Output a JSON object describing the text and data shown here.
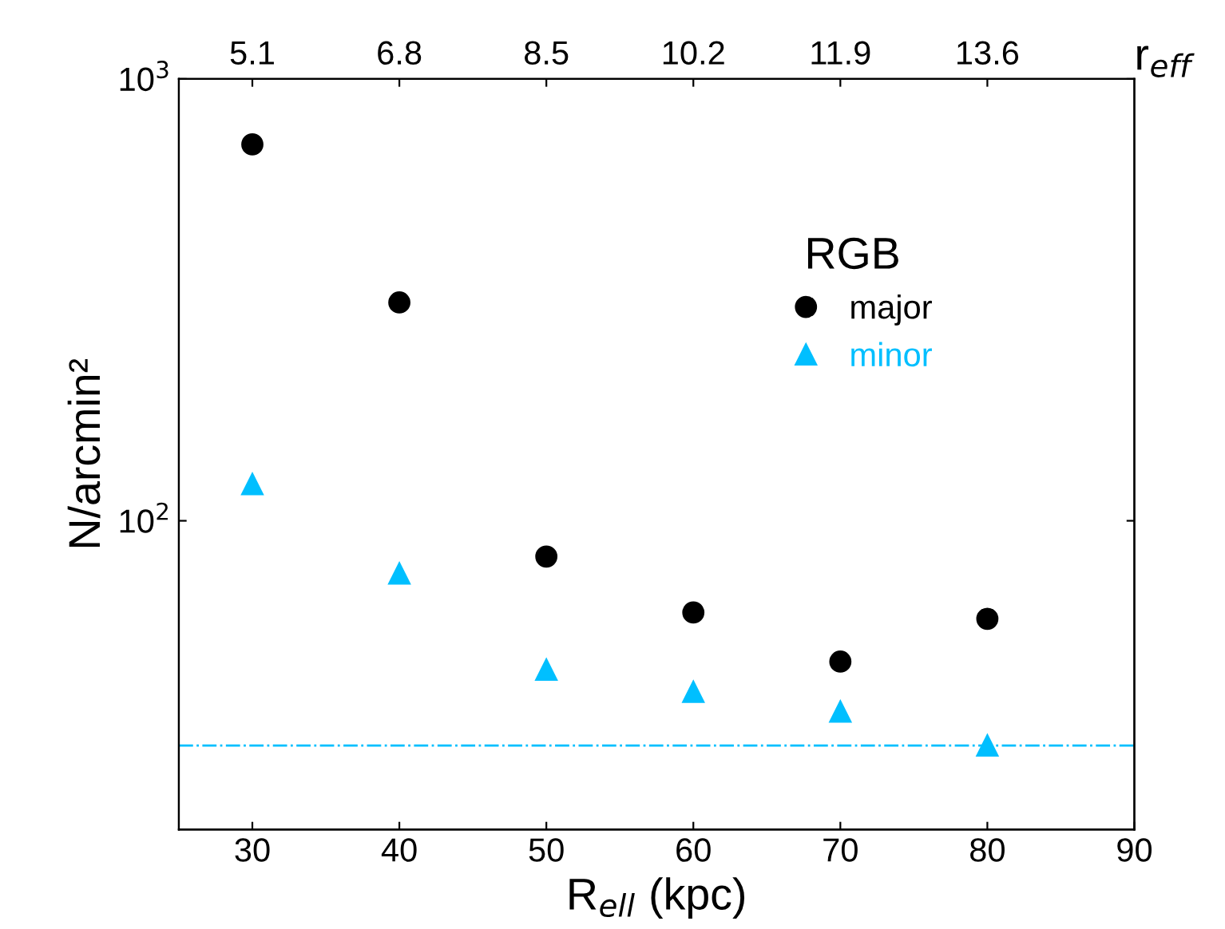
{
  "chart_data": {
    "type": "scatter",
    "xlabel": "R$_{ell}$ (kpc)",
    "ylabel": "N/arcmin²",
    "x2label": "r$_{eff}$",
    "x": [
      30,
      40,
      50,
      60,
      70,
      80
    ],
    "series": [
      {
        "name": "major",
        "color": "#000000",
        "marker": "circle",
        "values": [
          711,
          312,
          83,
          62,
          48,
          60
        ]
      },
      {
        "name": "minor",
        "color": "#00bfff",
        "marker": "triangle",
        "values": [
          121,
          76,
          46,
          41,
          37,
          31
        ]
      }
    ],
    "legend_title": "RGB",
    "legend": "top right",
    "log": "y",
    "xlim": [
      25,
      90
    ],
    "xticks": [
      30,
      40,
      50,
      60,
      70,
      80,
      90
    ],
    "ylim": [
      20,
      1000
    ],
    "yticks": [
      {
        "value": 100,
        "label": "10$^{2}$"
      },
      {
        "value": 1000,
        "label": "10$^{3}$"
      }
    ],
    "x2lim": [
      4.25,
      15.3
    ],
    "x2ticks": [
      5.1,
      6.8,
      8.5,
      10.2,
      11.9,
      13.6
    ],
    "ref_lines": [
      {
        "axis": "y",
        "value": 31,
        "color": "#00bfff",
        "line_style": "dashdot"
      }
    ],
    "grid": false
  }
}
